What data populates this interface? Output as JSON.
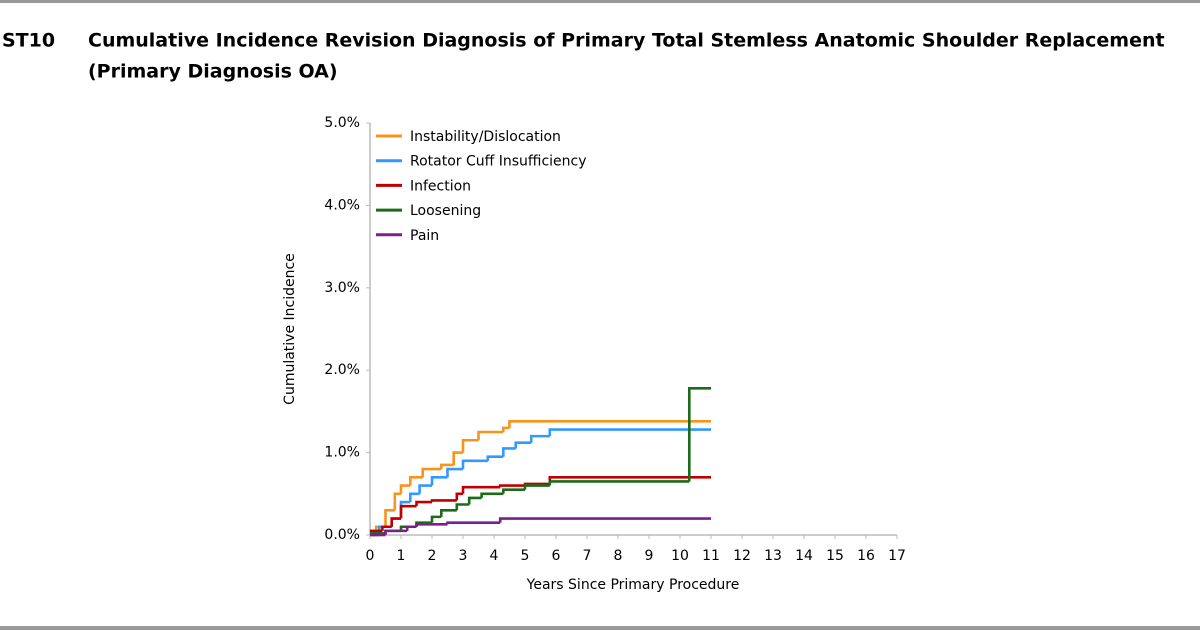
{
  "chart_data": {
    "type": "step",
    "label": "ST10",
    "title": "Cumulative Incidence Revision Diagnosis of Primary Total Stemless Anatomic Shoulder Replacement",
    "subtitle": "(Primary Diagnosis OA)",
    "xlabel": "Years Since Primary Procedure",
    "ylabel": "Cumulative Incidence",
    "xlim": [
      0,
      17
    ],
    "xticks": [
      0,
      1,
      2,
      3,
      4,
      5,
      6,
      7,
      8,
      9,
      10,
      11,
      12,
      13,
      14,
      15,
      16,
      17
    ],
    "ylim": [
      0,
      5
    ],
    "yticks": [
      {
        "value": 0,
        "label": "0.0%"
      },
      {
        "value": 1,
        "label": "1.0%"
      },
      {
        "value": 2,
        "label": "2.0%"
      },
      {
        "value": 3,
        "label": "3.0%"
      },
      {
        "value": 4,
        "label": "4.0%"
      },
      {
        "value": 5,
        "label": "5.0%"
      }
    ],
    "legend": "top-left",
    "series": [
      {
        "name": "Instability/Dislocation",
        "color": "#f7941d",
        "x": [
          0,
          0.2,
          0.5,
          0.8,
          1.0,
          1.3,
          1.7,
          2.3,
          2.7,
          3.0,
          3.5,
          4.3,
          4.5,
          11
        ],
        "values": [
          0,
          0.1,
          0.3,
          0.5,
          0.6,
          0.7,
          0.8,
          0.85,
          1.0,
          1.15,
          1.25,
          1.3,
          1.38,
          1.38
        ]
      },
      {
        "name": "Rotator Cuff Insufficiency",
        "color": "#3399ff",
        "x": [
          0,
          0.3,
          0.7,
          1.0,
          1.3,
          1.6,
          2.0,
          2.5,
          3.0,
          3.8,
          4.3,
          4.7,
          5.2,
          5.8,
          11
        ],
        "values": [
          0,
          0.1,
          0.2,
          0.4,
          0.5,
          0.6,
          0.7,
          0.8,
          0.9,
          0.95,
          1.05,
          1.12,
          1.2,
          1.28,
          1.28
        ]
      },
      {
        "name": "Infection",
        "color": "#c00000",
        "x": [
          0,
          0.4,
          0.7,
          1.0,
          1.5,
          2.0,
          2.8,
          3.0,
          4.2,
          5.0,
          5.8,
          11
        ],
        "values": [
          0.05,
          0.1,
          0.2,
          0.35,
          0.4,
          0.42,
          0.5,
          0.58,
          0.6,
          0.62,
          0.7,
          0.7
        ]
      },
      {
        "name": "Loosening",
        "color": "#1a6b1a",
        "x": [
          0,
          0.5,
          1.0,
          1.5,
          2.0,
          2.3,
          2.8,
          3.2,
          3.6,
          4.3,
          5.0,
          5.8,
          10.3,
          11
        ],
        "values": [
          0.02,
          0.05,
          0.1,
          0.15,
          0.22,
          0.3,
          0.37,
          0.45,
          0.5,
          0.55,
          0.6,
          0.65,
          1.78,
          1.78
        ]
      },
      {
        "name": "Pain",
        "color": "#7b1f8c",
        "x": [
          0,
          0.5,
          1.2,
          1.5,
          2.5,
          4.2,
          11
        ],
        "values": [
          0,
          0.05,
          0.1,
          0.13,
          0.15,
          0.2,
          0.2
        ]
      }
    ]
  }
}
